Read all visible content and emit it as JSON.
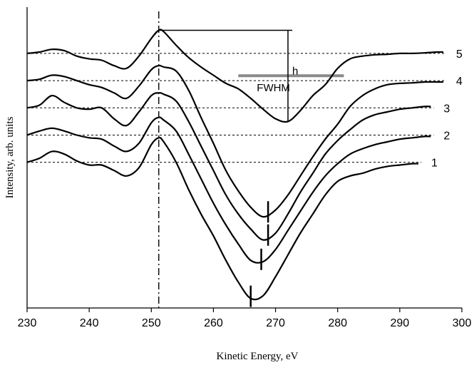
{
  "chart_data": {
    "type": "line",
    "title": "",
    "xlabel": "Kinetic Energy, eV",
    "ylabel": "Intensity, arb. units",
    "xlim": [
      230,
      300
    ],
    "xticks": [
      "230",
      "240",
      "250",
      "260",
      "270",
      "280",
      "290",
      "300"
    ],
    "grid": false,
    "reference_line_x": 251.2,
    "series": [
      {
        "name": "1",
        "baseline": 1.0,
        "x": [
          230,
          232,
          234,
          236,
          238,
          240,
          242,
          244,
          246,
          248,
          250,
          251.2,
          252,
          254,
          256,
          258,
          260,
          262,
          264,
          266,
          268,
          270,
          272,
          274,
          276,
          278,
          280,
          282,
          284,
          286,
          288,
          290,
          292,
          293
        ],
        "y": [
          1.0,
          1.15,
          1.4,
          1.3,
          1.05,
          0.9,
          0.9,
          0.7,
          0.5,
          0.8,
          1.65,
          1.9,
          1.75,
          1.0,
          0.0,
          -0.9,
          -1.7,
          -2.6,
          -3.4,
          -4.0,
          -3.9,
          -3.2,
          -2.4,
          -1.6,
          -0.9,
          -0.2,
          0.3,
          0.5,
          0.6,
          0.75,
          0.85,
          0.9,
          0.95,
          0.95
        ],
        "marker_x": 266.0
      },
      {
        "name": "2",
        "baseline": 2.0,
        "x": [
          230,
          232,
          234,
          236,
          238,
          240,
          242,
          244,
          246,
          248,
          250,
          251.2,
          252,
          254,
          256,
          258,
          260,
          262,
          264,
          266,
          268,
          270,
          272,
          274,
          276,
          278,
          280,
          282,
          284,
          286,
          288,
          290,
          292,
          294,
          295
        ],
        "y": [
          2.0,
          2.15,
          2.25,
          2.15,
          2.0,
          1.9,
          1.85,
          1.6,
          1.4,
          1.7,
          2.45,
          2.65,
          2.55,
          2.15,
          1.3,
          0.4,
          -0.5,
          -1.3,
          -2.0,
          -2.6,
          -2.65,
          -2.2,
          -1.5,
          -0.8,
          -0.1,
          0.5,
          0.95,
          1.3,
          1.5,
          1.65,
          1.75,
          1.85,
          1.9,
          1.95,
          1.95
        ],
        "marker_x": 267.7
      },
      {
        "name": "3",
        "baseline": 3.0,
        "x": [
          230,
          232,
          234,
          236,
          238,
          240,
          242,
          244,
          246,
          248,
          250,
          251.2,
          252,
          254,
          256,
          258,
          260,
          262,
          264,
          266,
          268,
          270,
          272,
          274,
          276,
          278,
          280,
          282,
          284,
          286,
          288,
          290,
          292,
          294,
          295
        ],
        "y": [
          3.0,
          3.1,
          3.45,
          3.2,
          3.0,
          2.95,
          3.0,
          2.6,
          2.35,
          2.85,
          3.45,
          3.55,
          3.5,
          3.25,
          2.5,
          1.6,
          0.7,
          -0.2,
          -0.9,
          -1.45,
          -1.85,
          -1.6,
          -0.9,
          -0.1,
          0.6,
          1.3,
          1.8,
          2.2,
          2.55,
          2.75,
          2.85,
          2.95,
          3.0,
          3.05,
          3.05
        ],
        "marker_x": 268.8
      },
      {
        "name": "4",
        "baseline": 4.0,
        "x": [
          230,
          232,
          234,
          236,
          238,
          240,
          242,
          244,
          246,
          248,
          250,
          251.2,
          252,
          254,
          256,
          258,
          260,
          262,
          264,
          266,
          268,
          270,
          272,
          274,
          276,
          278,
          280,
          282,
          284,
          286,
          288,
          290,
          292,
          294,
          296,
          297
        ],
        "y": [
          4.0,
          4.05,
          4.2,
          4.15,
          4.0,
          3.85,
          3.75,
          3.55,
          3.35,
          3.8,
          4.4,
          4.55,
          4.5,
          4.35,
          3.65,
          2.65,
          1.7,
          0.7,
          -0.05,
          -0.65,
          -1.0,
          -0.75,
          -0.2,
          0.5,
          1.2,
          1.85,
          2.4,
          3.05,
          3.45,
          3.7,
          3.85,
          3.9,
          3.92,
          3.95,
          3.95,
          3.95
        ],
        "marker_x": 268.8
      },
      {
        "name": "5",
        "baseline": 5.0,
        "x": [
          230,
          232,
          234,
          236,
          238,
          240,
          242,
          244,
          246,
          248,
          250,
          251.2,
          252,
          254,
          256,
          258,
          260,
          262,
          264,
          266,
          268,
          270,
          272,
          274,
          276,
          278,
          280,
          282,
          284,
          286,
          288,
          290,
          292,
          294,
          296,
          297
        ],
        "y": [
          5.0,
          5.05,
          5.15,
          5.1,
          4.9,
          4.8,
          4.75,
          4.55,
          4.45,
          4.9,
          5.55,
          5.85,
          5.8,
          5.3,
          4.85,
          4.5,
          4.2,
          3.9,
          3.7,
          3.35,
          2.95,
          2.6,
          2.5,
          2.9,
          3.45,
          3.85,
          4.45,
          4.8,
          4.9,
          4.95,
          4.97,
          5.0,
          5.0,
          5.02,
          5.05,
          5.05
        ]
      }
    ],
    "annotations": {
      "h_label": "h",
      "fwhm_label": "FWHM",
      "h_x": 272.0,
      "h_top_y": 5.85,
      "h_bottom_y": 2.5,
      "h_top_x_start": 251.2,
      "fwhm_x": [
        264.0,
        281.0
      ],
      "fwhm_y": 4.18
    }
  }
}
